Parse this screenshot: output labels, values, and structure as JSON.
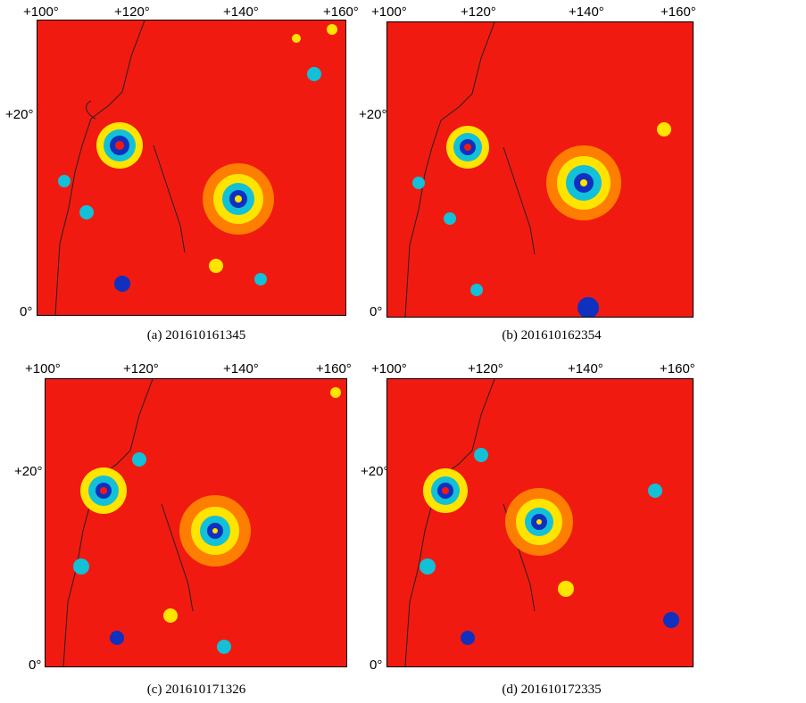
{
  "x_ticks": [
    "+100°",
    "+120°",
    "+140°",
    "+160°"
  ],
  "y_ticks": [
    "+20°",
    "0°"
  ],
  "panels": [
    {
      "caption": "(a) 201610161345"
    },
    {
      "caption": "(b) 201610162354"
    },
    {
      "caption": "(c) 201610171326"
    },
    {
      "caption": "(d) 201610172335"
    }
  ],
  "colors": {
    "background": "#f11a10",
    "mid": "#ffe400",
    "low": "#12c0d8",
    "core": "#1030c0",
    "coast": "#222222"
  }
}
